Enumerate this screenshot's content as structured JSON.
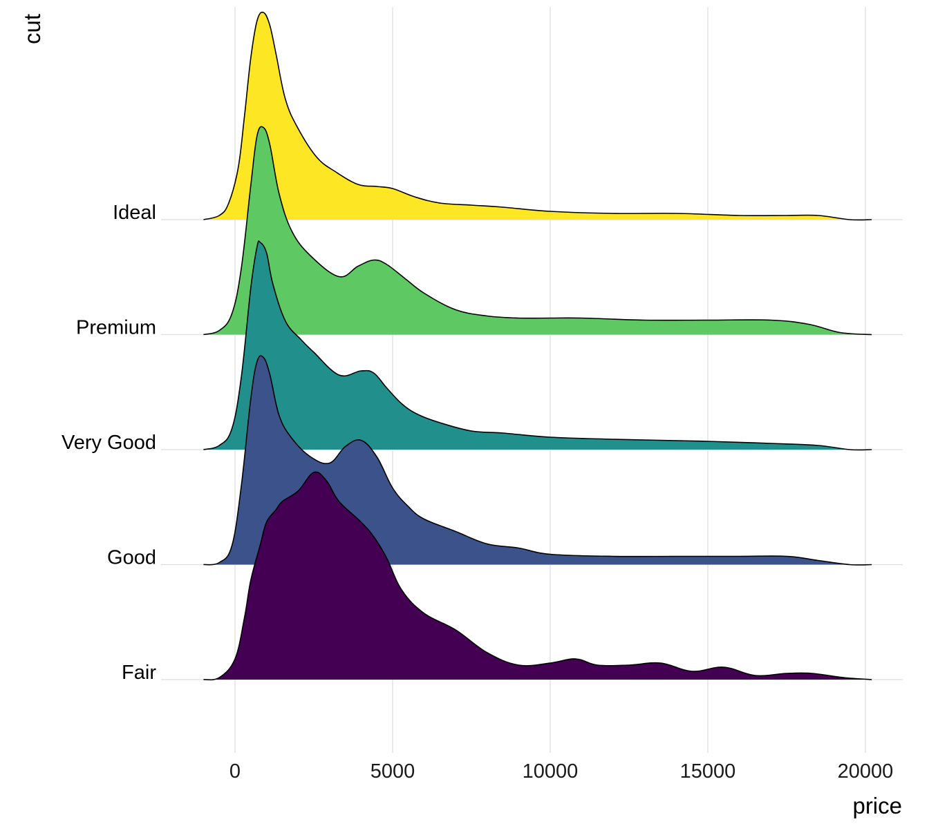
{
  "chart_data": {
    "type": "area",
    "subtype": "ridgeline density",
    "xlabel": "price",
    "ylabel": "cut",
    "xlim": [
      -1000,
      20200
    ],
    "x_ticks": [
      0,
      5000,
      10000,
      15000,
      20000
    ],
    "x_tick_labels": [
      "0",
      "5000",
      "10000",
      "15000",
      "20000"
    ],
    "grid": true,
    "legend": "none",
    "categories": [
      "Fair",
      "Good",
      "Very Good",
      "Premium",
      "Ideal"
    ],
    "series": [
      {
        "name": "Fair",
        "color": "#440154",
        "x": [
          -1000,
          -500,
          0,
          300,
          500,
          800,
          1000,
          1300,
          1500,
          2000,
          2500,
          2900,
          3300,
          4000,
          4400,
          4800,
          5300,
          6000,
          7000,
          8000,
          9000,
          10000,
          10800,
          11500,
          12500,
          13500,
          14500,
          15500,
          16500,
          17500,
          18300,
          19300,
          20200
        ],
        "density": [
          0,
          0.01,
          0.1,
          0.3,
          0.48,
          0.65,
          0.76,
          0.82,
          0.86,
          0.91,
          1.0,
          0.96,
          0.86,
          0.76,
          0.69,
          0.59,
          0.43,
          0.32,
          0.24,
          0.13,
          0.07,
          0.08,
          0.1,
          0.07,
          0.07,
          0.08,
          0.04,
          0.06,
          0.02,
          0.03,
          0.03,
          0.01,
          0
        ]
      },
      {
        "name": "Good",
        "color": "#3b528b",
        "x": [
          -1000,
          -500,
          -100,
          200,
          500,
          700,
          900,
          1100,
          1400,
          1800,
          2400,
          3000,
          3500,
          4000,
          4500,
          5000,
          5500,
          6000,
          7000,
          8000,
          9000,
          10000,
          12000,
          14000,
          16000,
          17500,
          18500,
          19500,
          20200
        ],
        "density": [
          0,
          0.01,
          0.09,
          0.38,
          0.8,
          0.98,
          1.0,
          0.92,
          0.72,
          0.61,
          0.52,
          0.49,
          0.57,
          0.6,
          0.52,
          0.37,
          0.28,
          0.22,
          0.16,
          0.1,
          0.08,
          0.05,
          0.04,
          0.04,
          0.04,
          0.04,
          0.02,
          0.0,
          0
        ]
      },
      {
        "name": "Very Good",
        "color": "#21908c",
        "x": [
          -1000,
          -500,
          -100,
          200,
          500,
          700,
          800,
          1000,
          1200,
          1600,
          2100,
          2500,
          3300,
          4000,
          4400,
          4800,
          5300,
          5800,
          6500,
          7500,
          8500,
          10000,
          12000,
          15000,
          17000,
          18500,
          19500,
          20200
        ],
        "density": [
          0,
          0.02,
          0.1,
          0.35,
          0.78,
          0.98,
          1.0,
          0.95,
          0.8,
          0.62,
          0.53,
          0.47,
          0.36,
          0.38,
          0.37,
          0.3,
          0.22,
          0.17,
          0.13,
          0.09,
          0.08,
          0.06,
          0.05,
          0.04,
          0.03,
          0.02,
          0.0,
          0
        ]
      },
      {
        "name": "Premium",
        "color": "#5ec962",
        "x": [
          -1000,
          -500,
          -100,
          200,
          500,
          700,
          900,
          1100,
          1400,
          1800,
          2400,
          3300,
          3900,
          4400,
          4800,
          5400,
          6000,
          7000,
          8000,
          9000,
          10000,
          11000,
          13000,
          15000,
          17000,
          18200,
          19200,
          20200
        ],
        "density": [
          0,
          0.02,
          0.1,
          0.32,
          0.72,
          0.96,
          1.0,
          0.92,
          0.68,
          0.5,
          0.38,
          0.28,
          0.33,
          0.36,
          0.34,
          0.27,
          0.2,
          0.12,
          0.09,
          0.08,
          0.08,
          0.08,
          0.07,
          0.07,
          0.07,
          0.05,
          0.01,
          0
        ]
      },
      {
        "name": "Ideal",
        "color": "#fde725",
        "x": [
          -1000,
          -500,
          -200,
          100,
          300,
          500,
          700,
          900,
          1100,
          1300,
          1600,
          2000,
          2600,
          3200,
          3900,
          4500,
          5000,
          5700,
          6500,
          7500,
          8500,
          10000,
          12000,
          14000,
          16000,
          17500,
          18500,
          19500,
          20200
        ],
        "density": [
          0,
          0.02,
          0.08,
          0.25,
          0.5,
          0.78,
          0.96,
          1.0,
          0.94,
          0.8,
          0.58,
          0.44,
          0.3,
          0.23,
          0.17,
          0.16,
          0.15,
          0.11,
          0.08,
          0.07,
          0.06,
          0.04,
          0.03,
          0.03,
          0.02,
          0.02,
          0.02,
          0.0,
          0
        ]
      }
    ]
  }
}
